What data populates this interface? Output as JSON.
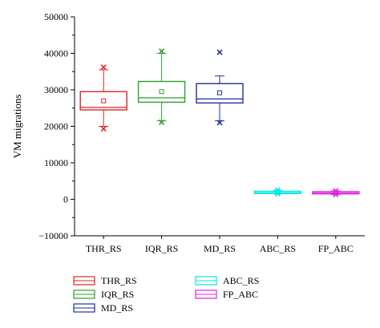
{
  "chart_data": {
    "type": "box",
    "ylabel": "VM migrations",
    "ylim": [
      -10000,
      50000
    ],
    "yticks": [
      -10000,
      0,
      10000,
      20000,
      30000,
      40000,
      50000
    ],
    "ytick_labels": [
      "−10000",
      "0",
      "10000",
      "20000",
      "30000",
      "40000",
      "50000"
    ],
    "grid": false,
    "legend_position": "bottom",
    "categories": [
      "THR_RS",
      "IQR_RS",
      "MD_RS",
      "ABC_RS",
      "FP_ABC"
    ],
    "series": [
      {
        "name": "THR_RS",
        "color": "#d62728",
        "q1": 24500,
        "median": 25200,
        "q3": 29500,
        "mean": 27000,
        "whisker_low": 20000,
        "whisker_high": 35500,
        "min": 19300,
        "max": 36200
      },
      {
        "name": "IQR_RS",
        "color": "#2ca02c",
        "q1": 26600,
        "median": 27800,
        "q3": 32300,
        "mean": 29500,
        "whisker_low": 21500,
        "whisker_high": 40000,
        "min": 21100,
        "max": 40600
      },
      {
        "name": "MD_RS",
        "color": "#1f2f99",
        "q1": 26400,
        "median": 27500,
        "q3": 31700,
        "mean": 29200,
        "whisker_low": 21500,
        "whisker_high": 33800,
        "min": 21000,
        "max": 40300
      },
      {
        "name": "ABC_RS",
        "color": "#00e5e5",
        "q1": 1600,
        "median": 1800,
        "q3": 2200,
        "mean": 1900,
        "whisker_low": 1500,
        "whisker_high": 2500,
        "min": 1500,
        "max": 2500
      },
      {
        "name": "FP_ABC",
        "color": "#e020e0",
        "q1": 1500,
        "median": 1700,
        "q3": 2100,
        "mean": 1800,
        "whisker_low": 1300,
        "whisker_high": 2300,
        "min": 1300,
        "max": 2300
      }
    ]
  }
}
